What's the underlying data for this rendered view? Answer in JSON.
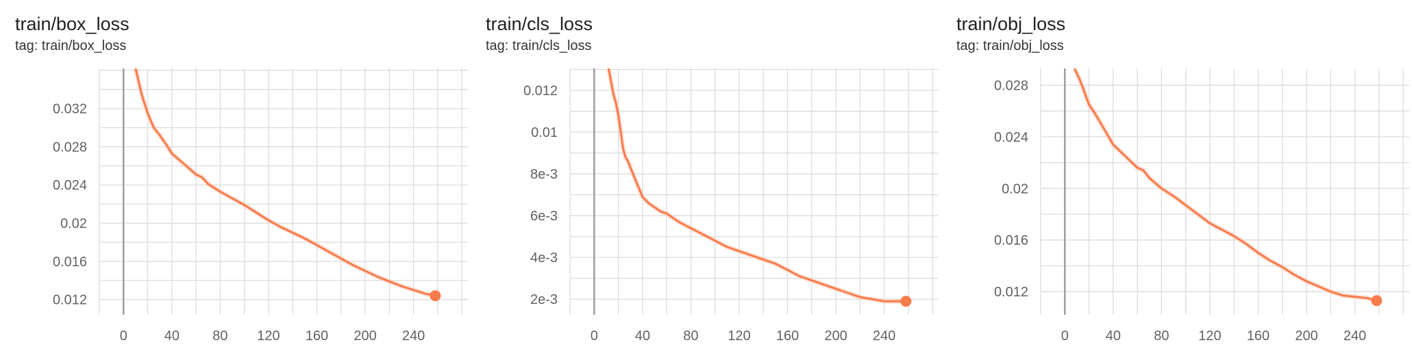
{
  "colors": {
    "line": "#f87b4c",
    "line_raw": "#fbc8b3",
    "grid": "#dcdcdc",
    "zero_axis": "#9e9e9e"
  },
  "chart_data": [
    {
      "type": "line",
      "title": "train/box_loss",
      "subtitle": "tag: train/box_loss",
      "xlim": [
        -20,
        285
      ],
      "ylim": [
        0.0104,
        0.0362
      ],
      "x_ticks": [
        0,
        40,
        80,
        120,
        160,
        200,
        240
      ],
      "x_tick_labels": [
        "0",
        "40",
        "80",
        "120",
        "160",
        "200",
        "240"
      ],
      "y_ticks": [
        0.012,
        0.016,
        0.02,
        0.024,
        0.028,
        0.032
      ],
      "y_tick_labels": [
        "0.012",
        "0.016",
        "0.02",
        "0.024",
        "0.028",
        "0.032"
      ],
      "series": [
        {
          "x": [
            10,
            15,
            20,
            25,
            30,
            35,
            40,
            50,
            60,
            65,
            70,
            80,
            90,
            100,
            110,
            120,
            130,
            140,
            150,
            160,
            170,
            180,
            190,
            200,
            210,
            220,
            230,
            240,
            250,
            258
          ],
          "y": [
            0.0362,
            0.0335,
            0.0315,
            0.03,
            0.0292,
            0.0283,
            0.0273,
            0.0262,
            0.0251,
            0.0248,
            0.0241,
            0.0233,
            0.0226,
            0.0219,
            0.0211,
            0.0203,
            0.0196,
            0.019,
            0.0184,
            0.0177,
            0.017,
            0.0163,
            0.0156,
            0.015,
            0.0144,
            0.0139,
            0.0134,
            0.013,
            0.0126,
            0.0124
          ]
        }
      ]
    },
    {
      "type": "line",
      "title": "train/cls_loss",
      "subtitle": "tag: train/cls_loss",
      "xlim": [
        -20,
        285
      ],
      "ylim": [
        0.00125,
        0.01305
      ],
      "x_ticks": [
        0,
        40,
        80,
        120,
        160,
        200,
        240
      ],
      "x_tick_labels": [
        "0",
        "40",
        "80",
        "120",
        "160",
        "200",
        "240"
      ],
      "y_ticks": [
        0.002,
        0.004,
        0.006,
        0.008,
        0.01,
        0.012
      ],
      "y_tick_labels": [
        "2e-3",
        "4e-3",
        "6e-3",
        "8e-3",
        "0.01",
        "0.012"
      ],
      "series": [
        {
          "x": [
            12,
            14,
            16,
            18,
            20,
            22,
            24,
            26,
            28,
            30,
            35,
            40,
            45,
            50,
            55,
            60,
            70,
            80,
            90,
            100,
            110,
            120,
            130,
            140,
            150,
            160,
            170,
            180,
            190,
            200,
            210,
            220,
            230,
            240,
            250,
            258
          ],
          "y": [
            0.01305,
            0.0124,
            0.0118,
            0.0114,
            0.0108,
            0.01,
            0.0092,
            0.0088,
            0.0086,
            0.0083,
            0.0076,
            0.0069,
            0.0066,
            0.0064,
            0.0062,
            0.0061,
            0.0057,
            0.0054,
            0.0051,
            0.0048,
            0.0045,
            0.0043,
            0.0041,
            0.0039,
            0.0037,
            0.0034,
            0.0031,
            0.0029,
            0.0027,
            0.0025,
            0.0023,
            0.0021,
            0.002,
            0.0019,
            0.0019,
            0.0019
          ]
        }
      ]
    },
    {
      "type": "line",
      "title": "train/obj_loss",
      "subtitle": "tag: train/obj_loss",
      "xlim": [
        -20,
        285
      ],
      "ylim": [
        0.0102,
        0.0293
      ],
      "x_ticks": [
        0,
        40,
        80,
        120,
        160,
        200,
        240
      ],
      "x_tick_labels": [
        "0",
        "40",
        "80",
        "120",
        "160",
        "200",
        "240"
      ],
      "y_ticks": [
        0.012,
        0.016,
        0.02,
        0.024,
        0.028
      ],
      "y_tick_labels": [
        "0.012",
        "0.016",
        "0.02",
        "0.024",
        "0.028"
      ],
      "series": [
        {
          "x": [
            8,
            12,
            15,
            18,
            20,
            25,
            30,
            35,
            40,
            50,
            60,
            65,
            70,
            80,
            90,
            100,
            110,
            120,
            130,
            140,
            150,
            160,
            170,
            180,
            190,
            200,
            210,
            220,
            230,
            240,
            250,
            258
          ],
          "y": [
            0.0293,
            0.0285,
            0.0278,
            0.027,
            0.0265,
            0.0258,
            0.025,
            0.0242,
            0.0234,
            0.0225,
            0.0216,
            0.0214,
            0.0208,
            0.02,
            0.0194,
            0.0187,
            0.018,
            0.0173,
            0.0168,
            0.0163,
            0.0157,
            0.015,
            0.0144,
            0.0139,
            0.0133,
            0.0128,
            0.0124,
            0.012,
            0.0117,
            0.0116,
            0.0115,
            0.0113
          ]
        }
      ]
    }
  ]
}
